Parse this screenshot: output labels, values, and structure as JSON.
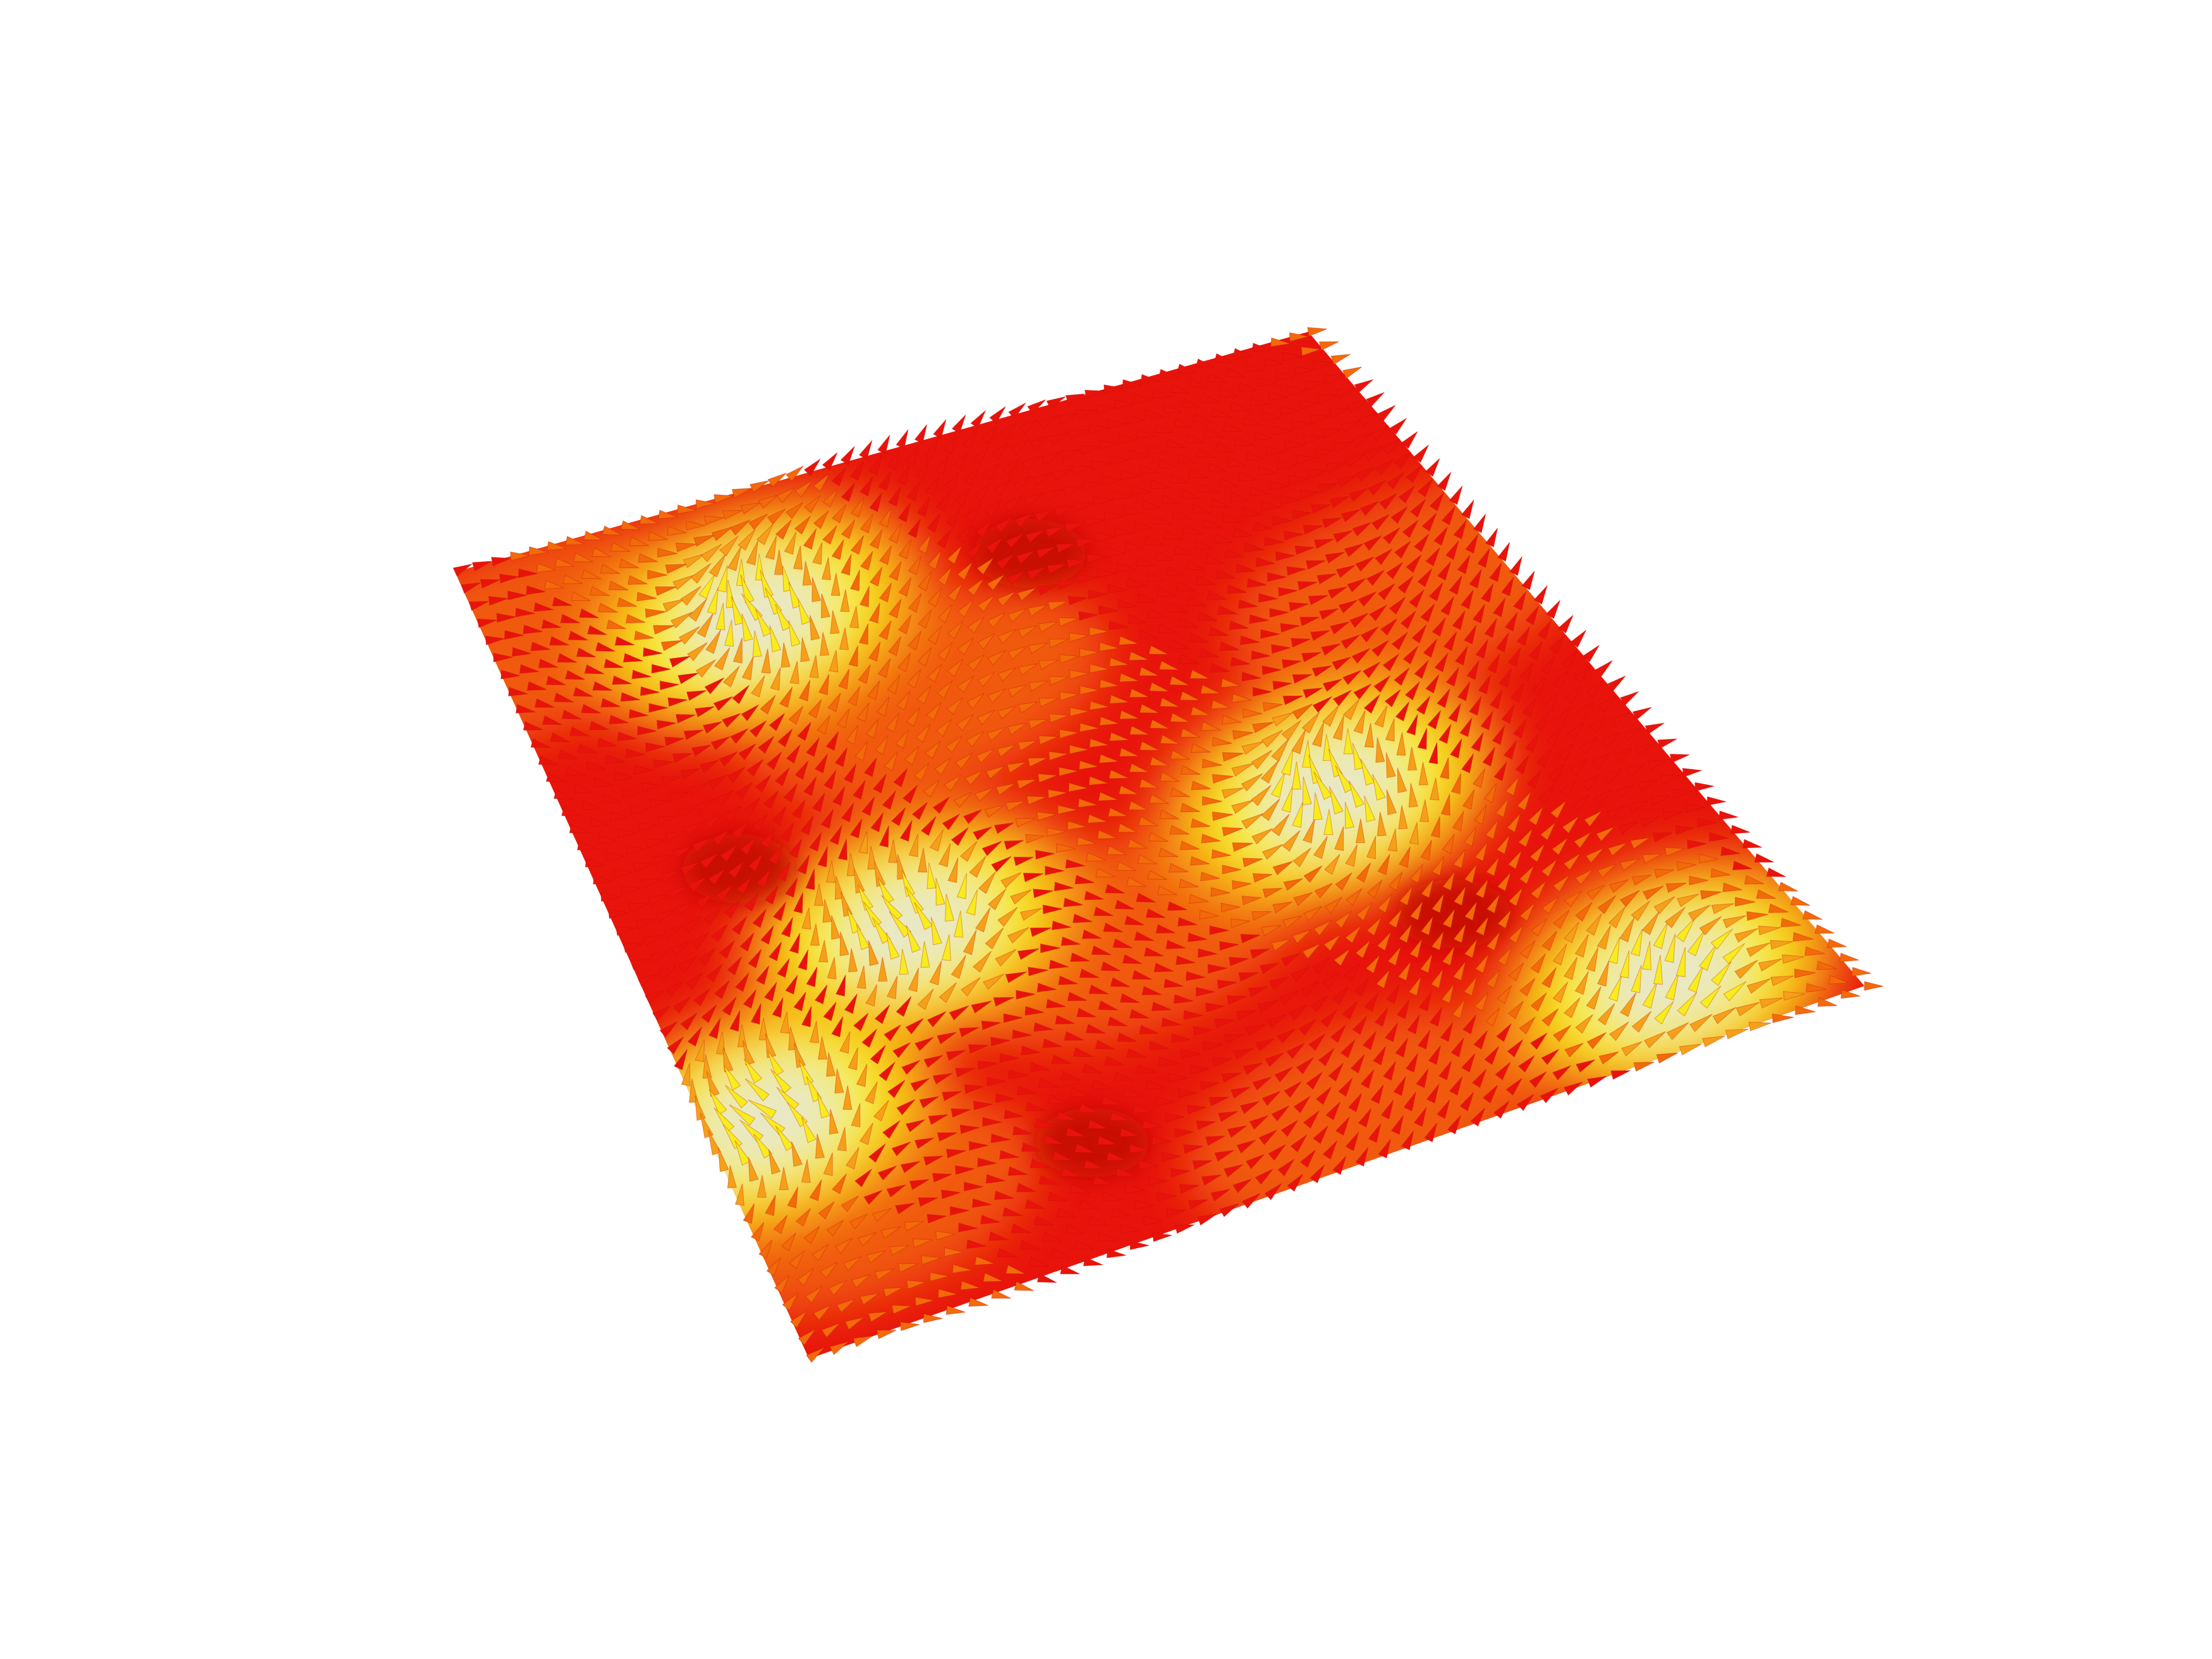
{
  "image": {
    "subject": "spin-texture-vector-field",
    "background_color": "#ffffff"
  },
  "palette": {
    "red": "#e8140c",
    "deep_red": "#c40a06",
    "orange": "#f26a0a",
    "light_orange": "#f5a018",
    "yellow": "#f7ec1e",
    "pale": "#e8e8c8"
  },
  "bright_cores": [
    {
      "u": 0.28,
      "v": 0.15
    },
    {
      "u": 0.27,
      "v": 0.56
    },
    {
      "u": 0.7,
      "v": 0.56
    },
    {
      "u": 0.86,
      "v": 0.91
    },
    {
      "u": 0.06,
      "v": 0.72
    }
  ],
  "dark_vortices": [
    {
      "u": 0.58,
      "v": 0.17
    },
    {
      "u": 0.14,
      "v": 0.43
    },
    {
      "u": 0.73,
      "v": 0.75
    },
    {
      "u": 0.32,
      "v": 0.87
    }
  ]
}
